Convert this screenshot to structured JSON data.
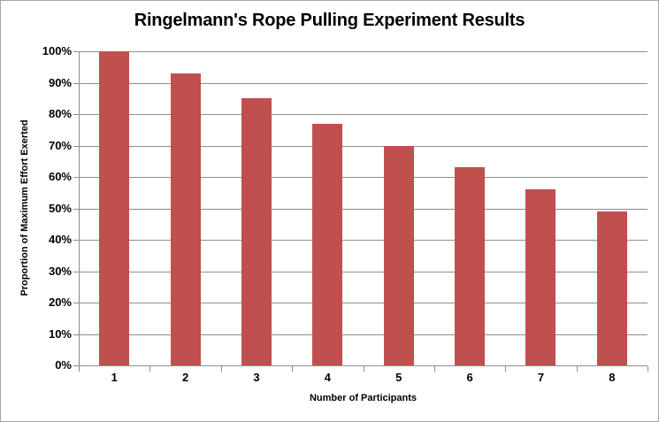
{
  "chart_data": {
    "type": "bar",
    "title": "Ringelmann's Rope Pulling Experiment Results",
    "xlabel": "Number of Participants",
    "ylabel": "Proportion of Maximum Effort Exerted",
    "categories": [
      "1",
      "2",
      "3",
      "4",
      "5",
      "6",
      "7",
      "8"
    ],
    "values": [
      100,
      93,
      85,
      77,
      70,
      63,
      56,
      49
    ],
    "value_unit": "%",
    "ylim": [
      0,
      100
    ],
    "y_tick_step": 10,
    "y_tick_labels": [
      "0%",
      "10%",
      "20%",
      "30%",
      "40%",
      "50%",
      "60%",
      "70%",
      "80%",
      "90%",
      "100%"
    ],
    "grid": "horizontal",
    "legend": "none",
    "colors": {
      "bar_fill": "#C0504D",
      "gridline": "#8E8E8E",
      "axis_line": "#8E8E8E",
      "text": "#000000",
      "background": "#FFFFFF",
      "frame_border": "#A6A6A6"
    }
  }
}
